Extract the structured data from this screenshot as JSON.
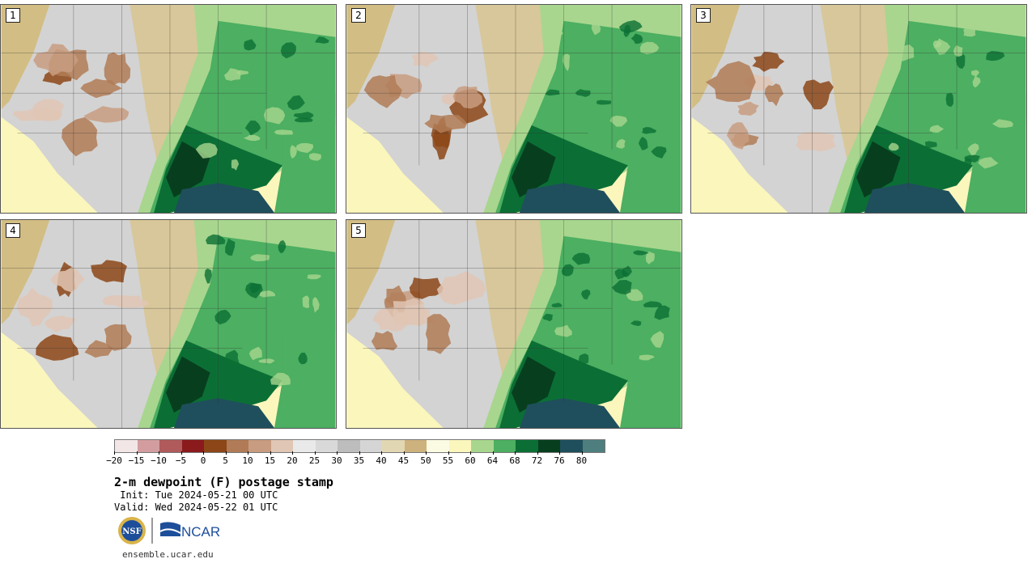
{
  "panels": [
    {
      "label": "1",
      "seed": 11
    },
    {
      "label": "2",
      "seed": 23
    },
    {
      "label": "3",
      "seed": 37
    },
    {
      "label": "4",
      "seed": 51
    },
    {
      "label": "5",
      "seed": 67
    }
  ],
  "colorbar": {
    "colors": [
      "#f3e6e6",
      "#d39d9f",
      "#b05a5c",
      "#8b1a1d",
      "#8c4617",
      "#b07b56",
      "#c89c80",
      "#e0c6b4",
      "#e9e9e9",
      "#d9d9d9",
      "#bdbdbd",
      "#d5d5d5",
      "#e2d7b3",
      "#cdb27d",
      "#fbfbe4",
      "#fbf6bc",
      "#a8d68e",
      "#4caf61",
      "#0b6f35",
      "#073f1e",
      "#1f4f5c",
      "#4f7e7e"
    ],
    "tick_labels": [
      "−20",
      "−15",
      "−10",
      "−5",
      "0",
      "5",
      "10",
      "15",
      "20",
      "25",
      "30",
      "35",
      "40",
      "45",
      "50",
      "55",
      "60",
      "64",
      "68",
      "72",
      "76",
      "80"
    ]
  },
  "title": "2-m dewpoint (F) postage stamp",
  "init_text": " Init: Tue 2024-05-21 00 UTC",
  "valid_text": "Valid: Wed 2024-05-22 01 UTC",
  "logos": {
    "nsf": "NSF",
    "ncar": "NCAR"
  },
  "site": "ensemble.ucar.edu"
}
